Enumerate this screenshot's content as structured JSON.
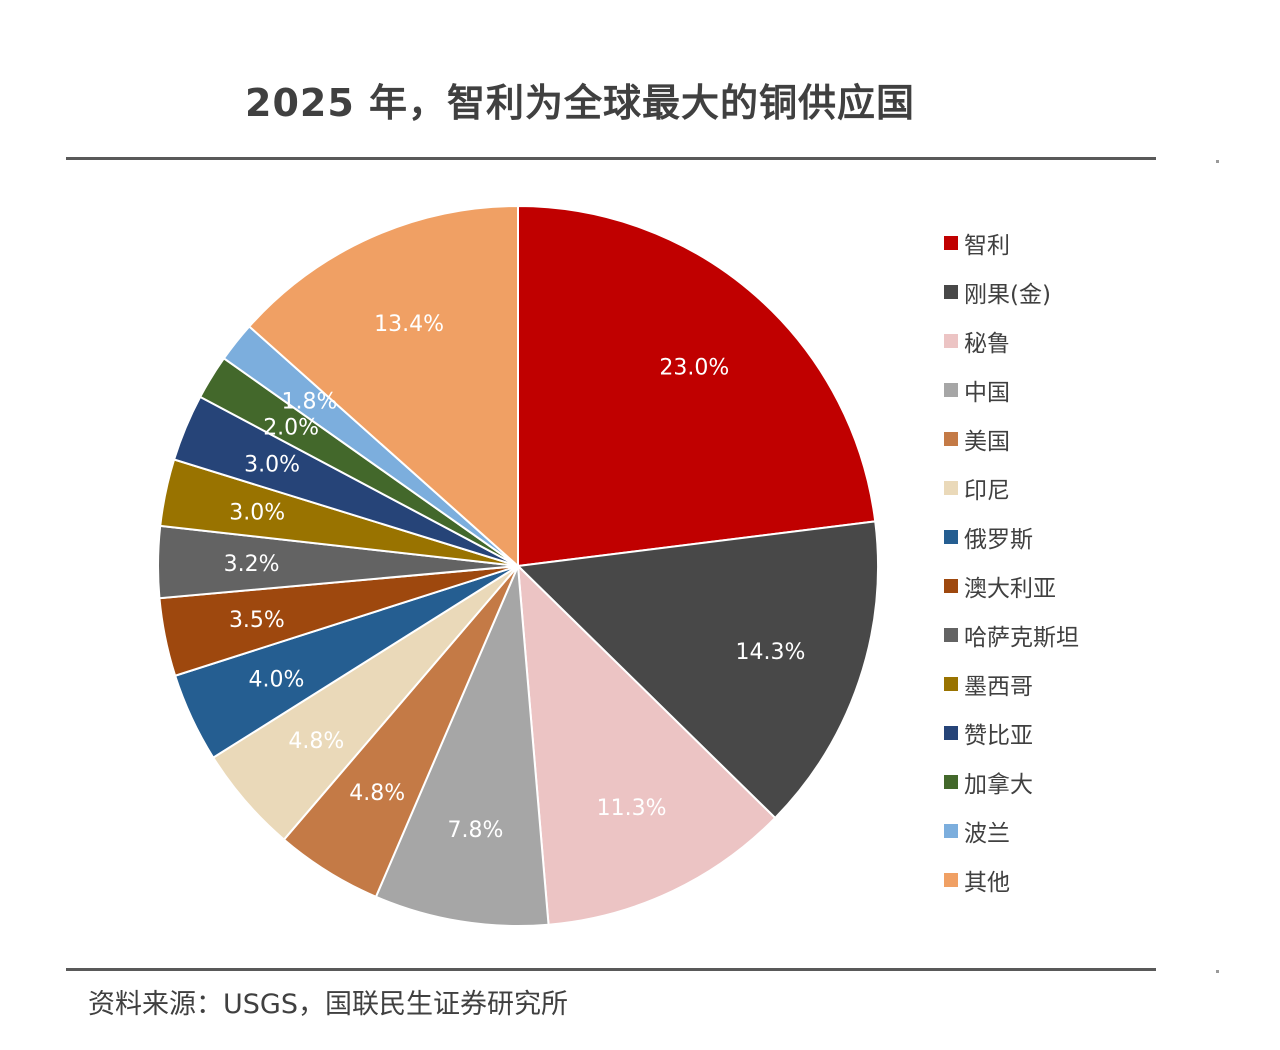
{
  "chart_data": {
    "type": "pie",
    "title": "2025 年，智利为全球最大的铜供应国",
    "source": "资料来源：USGS，国联民生证券研究所",
    "legend_position": "right",
    "slices": [
      {
        "label": "智利",
        "value": 23.0,
        "display": "23.0%",
        "color": "#c00000",
        "label_color": "#ffffff"
      },
      {
        "label": "刚果(金)",
        "value": 14.3,
        "display": "14.3%",
        "color": "#484848",
        "label_color": "#ffffff"
      },
      {
        "label": "秘鲁",
        "value": 11.3,
        "display": "11.3%",
        "color": "#ecc4c4",
        "label_color": "#ffffff"
      },
      {
        "label": "中国",
        "value": 7.8,
        "display": "7.8%",
        "color": "#a6a6a6",
        "label_color": "#ffffff"
      },
      {
        "label": "美国",
        "value": 4.8,
        "display": "4.8%",
        "color": "#c47a46",
        "label_color": "#ffffff"
      },
      {
        "label": "印尼",
        "value": 4.8,
        "display": "4.8%",
        "color": "#ead9b9",
        "label_color": "#ffffff"
      },
      {
        "label": "俄罗斯",
        "value": 4.0,
        "display": "4.0%",
        "color": "#255e91",
        "label_color": "#ffffff"
      },
      {
        "label": "澳大利亚",
        "value": 3.5,
        "display": "3.5%",
        "color": "#9e480e",
        "label_color": "#ffffff"
      },
      {
        "label": "哈萨克斯坦",
        "value": 3.2,
        "display": "3.2%",
        "color": "#636363",
        "label_color": "#ffffff"
      },
      {
        "label": "墨西哥",
        "value": 3.0,
        "display": "3.0%",
        "color": "#997300",
        "label_color": "#ffffff"
      },
      {
        "label": "赞比亚",
        "value": 3.0,
        "display": "3.0%",
        "color": "#264478",
        "label_color": "#ffffff"
      },
      {
        "label": "加拿大",
        "value": 2.0,
        "display": "2.0%",
        "color": "#43682b",
        "label_color": "#ffffff"
      },
      {
        "label": "波兰",
        "value": 1.8,
        "display": "1.8%",
        "color": "#7caedd",
        "label_color": "#ffffff"
      },
      {
        "label": "其他",
        "value": 13.4,
        "display": "13.4%",
        "color": "#f0a064",
        "label_color": "#ffffff"
      }
    ]
  }
}
